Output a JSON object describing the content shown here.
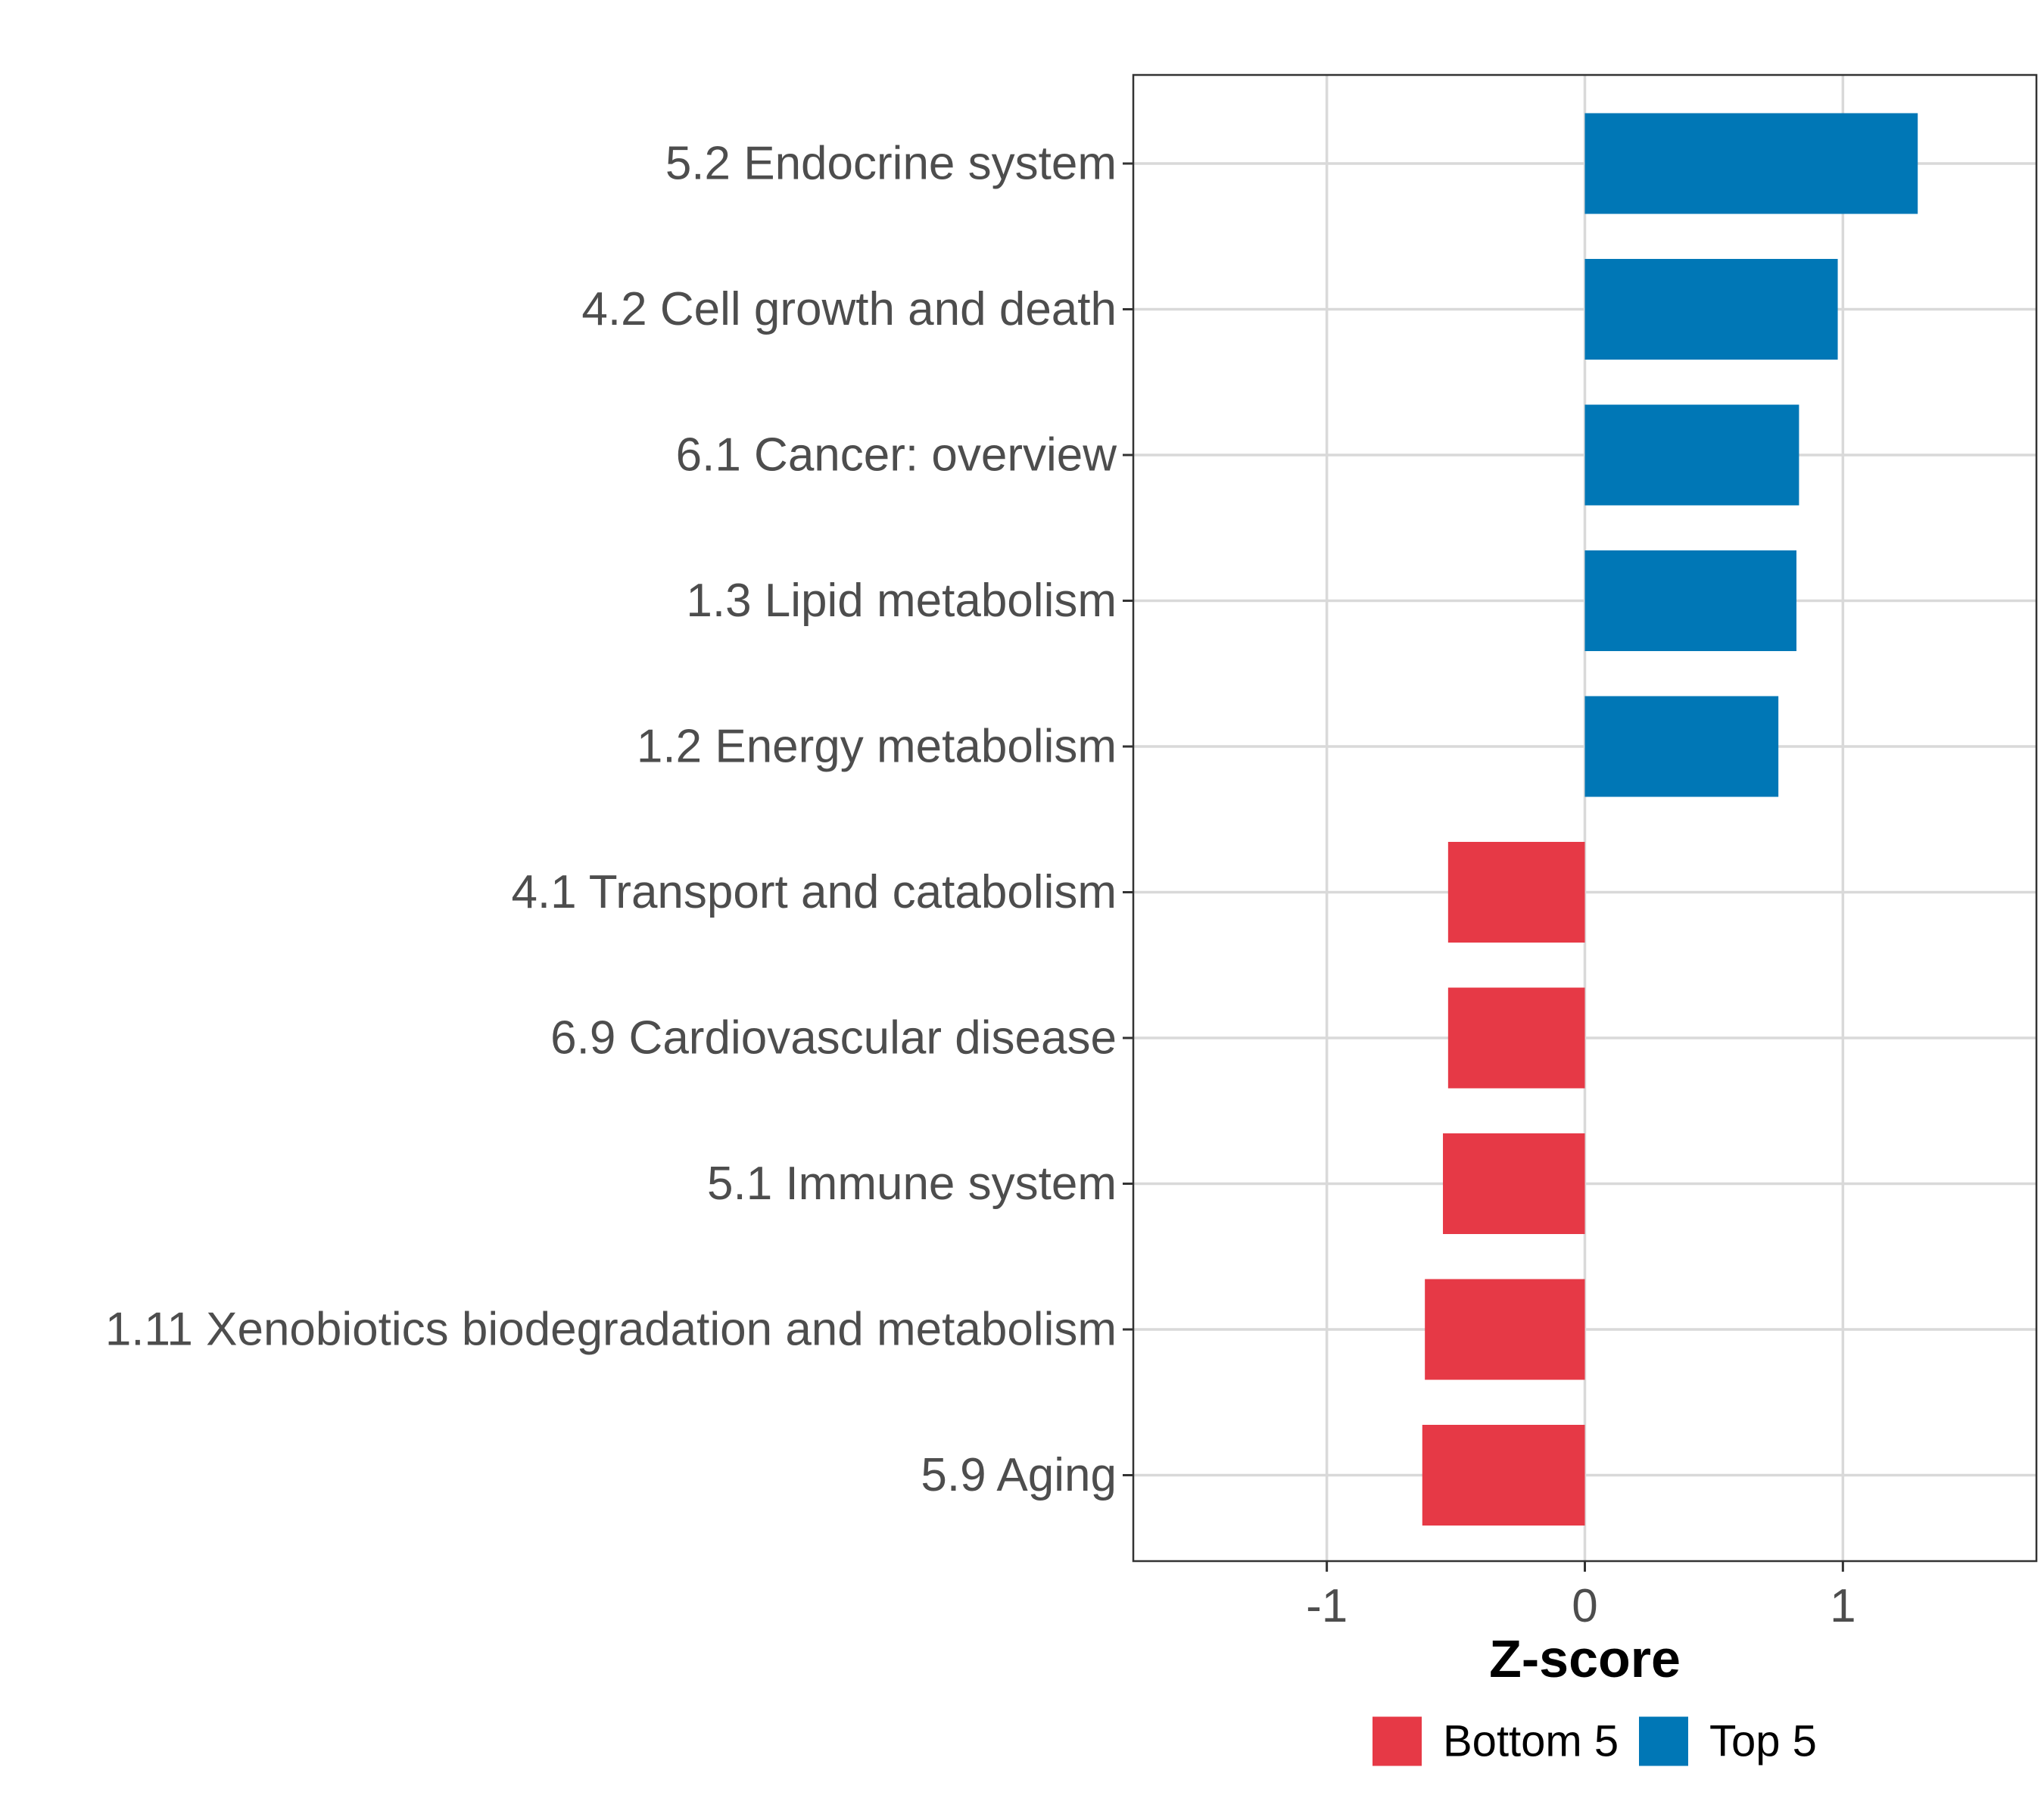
{
  "chart_data": {
    "type": "bar",
    "orientation": "horizontal",
    "categories": [
      "5.2 Endocrine system",
      "4.2 Cell growth and death",
      "6.1 Cancer: overview",
      "1.3 Lipid metabolism",
      "1.2 Energy metabolism",
      "4.1 Transport and catabolism",
      "6.9 Cardiovascular disease",
      "5.1 Immune system",
      "1.11 Xenobiotics biodegradation and metabolism",
      "5.9 Aging"
    ],
    "values": [
      1.29,
      0.98,
      0.83,
      0.82,
      0.75,
      -0.53,
      -0.53,
      -0.55,
      -0.62,
      -0.63
    ],
    "groups": [
      "Top 5",
      "Top 5",
      "Top 5",
      "Top 5",
      "Top 5",
      "Bottom 5",
      "Bottom 5",
      "Bottom 5",
      "Bottom 5",
      "Bottom 5"
    ],
    "xlabel": "Z-score",
    "ylabel": "",
    "xlim": [
      -1.75,
      1.75
    ],
    "xticks": [
      -1,
      0,
      1
    ],
    "xtick_labels": [
      "-1",
      "0",
      "1"
    ],
    "grid": true,
    "legend": {
      "position": "bottom",
      "entries": [
        {
          "label": "Bottom 5",
          "color": "#e63946"
        },
        {
          "label": "Top 5",
          "color": "#0077b6"
        }
      ]
    },
    "colors": {
      "Top 5": "#0077b6",
      "Bottom 5": "#e63946"
    }
  }
}
